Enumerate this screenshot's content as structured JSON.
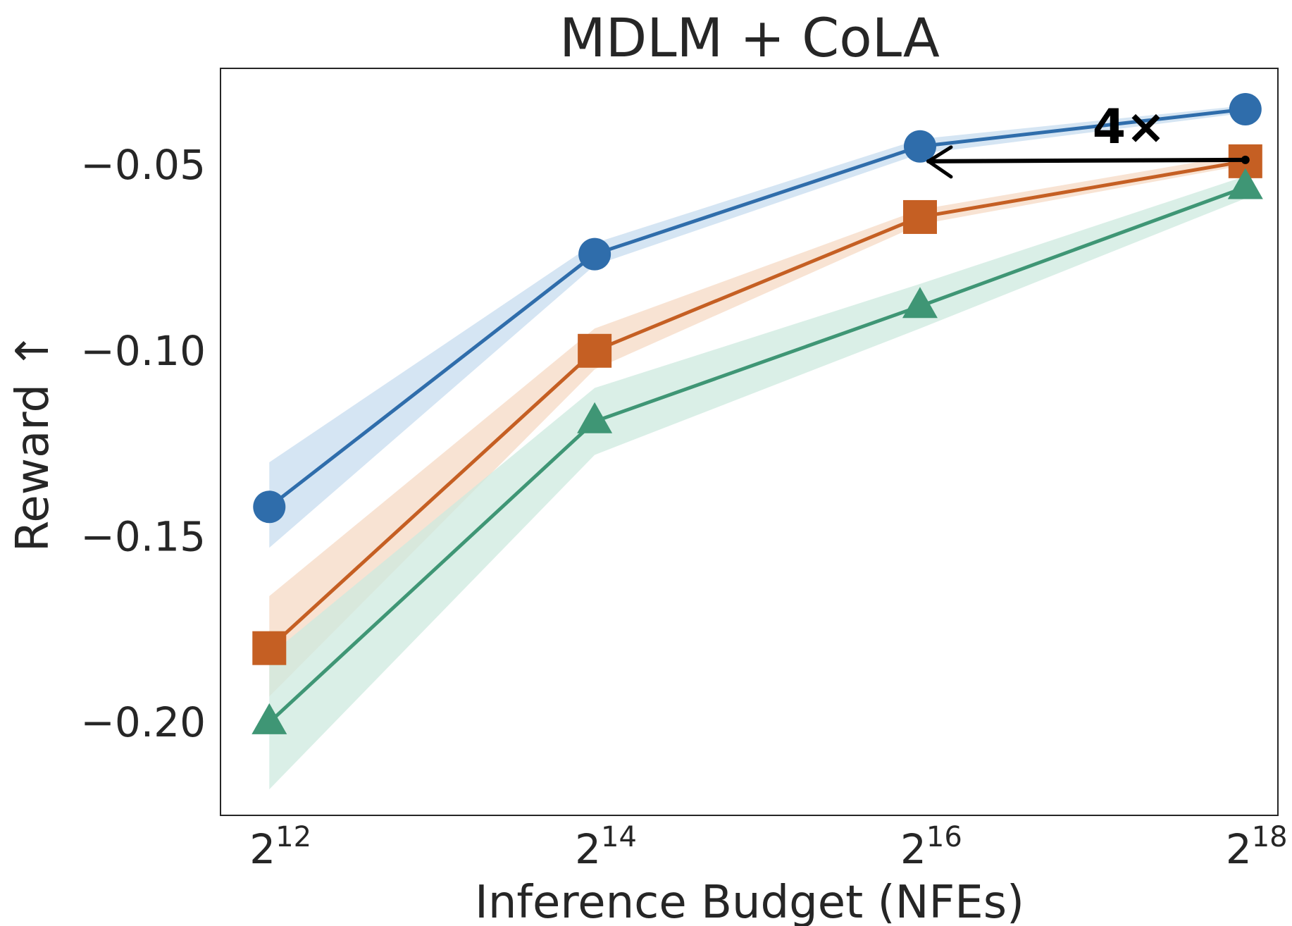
{
  "chart_data": {
    "type": "line",
    "title": "MDLM + CoLA",
    "xlabel": "Inference Budget (NFEs)",
    "ylabel": "Reward ↑",
    "x_scale": "log2",
    "x": [
      12,
      14,
      16,
      18
    ],
    "x_tick_labels": [
      {
        "base": "2",
        "exp": "12"
      },
      {
        "base": "2",
        "exp": "14"
      },
      {
        "base": "2",
        "exp": "16"
      },
      {
        "base": "2",
        "exp": "18"
      }
    ],
    "y_ticks": [
      -0.05,
      -0.1,
      -0.15,
      -0.2
    ],
    "y_tick_labels": [
      "−0.05",
      "−0.10",
      "−0.15",
      "−0.20"
    ],
    "xlim": [
      11.7,
      18.2
    ],
    "ylim": [
      -0.225,
      -0.024
    ],
    "grid": false,
    "series": [
      {
        "name": "blue-circle",
        "marker": "circle",
        "color": "#2f6dab",
        "band_color": "#c7dcef",
        "values": [
          -0.142,
          -0.074,
          -0.045,
          -0.035
        ],
        "lower": [
          -0.153,
          -0.077,
          -0.047,
          -0.036
        ],
        "upper": [
          -0.13,
          -0.071,
          -0.043,
          -0.034
        ]
      },
      {
        "name": "orange-square",
        "marker": "square",
        "color": "#c55f23",
        "band_color": "#f5d9c4",
        "values": [
          -0.18,
          -0.1,
          -0.064,
          -0.049
        ],
        "lower": [
          -0.193,
          -0.105,
          -0.066,
          -0.05
        ],
        "upper": [
          -0.166,
          -0.094,
          -0.062,
          -0.047
        ]
      },
      {
        "name": "green-triangle",
        "marker": "triangle",
        "color": "#3f9675",
        "band_color": "#cdeadf",
        "values": [
          -0.2,
          -0.119,
          -0.088,
          -0.056
        ],
        "lower": [
          -0.218,
          -0.128,
          -0.094,
          -0.059
        ],
        "upper": [
          -0.182,
          -0.11,
          -0.082,
          -0.053
        ]
      }
    ],
    "annotations": [
      {
        "text": "4×",
        "arrow_from": [
          18,
          -0.049
        ],
        "arrow_to": [
          16,
          -0.049
        ]
      }
    ]
  }
}
